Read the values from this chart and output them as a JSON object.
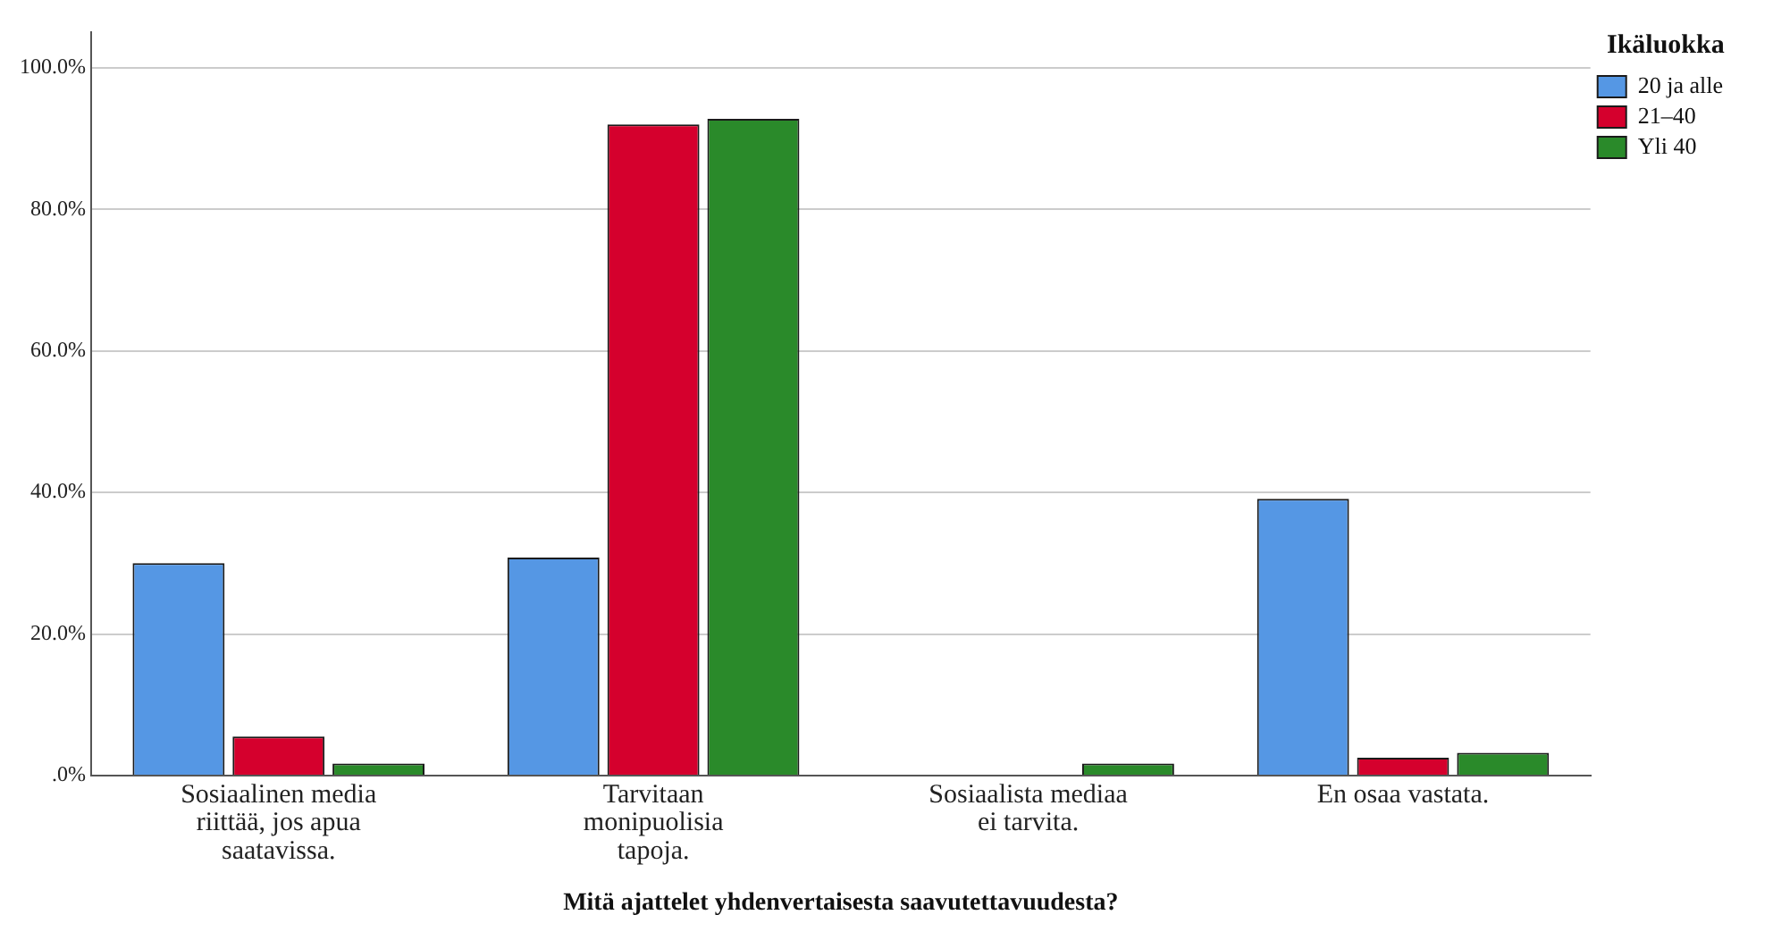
{
  "chart_data": {
    "type": "bar",
    "xlabel": "Mitä ajattelet yhdenvertaisesta saavutettavuudesta?",
    "legend_title": "Ikäluokka",
    "categories": [
      "Sosiaalinen media riittää, jos apua saatavissa.",
      "Tarvitaan monipuolisia tapoja.",
      "Sosiaalista mediaa ei tarvita.",
      "En osaa vastata."
    ],
    "series": [
      {
        "name": "20 ja alle",
        "color": "#5597e4",
        "values": [
          30.0,
          30.8,
          0,
          39.1
        ]
      },
      {
        "name": "21–40",
        "color": "#d5002d",
        "values": [
          5.5,
          92.0,
          0,
          2.5
        ]
      },
      {
        "name": "Yli 40",
        "color": "#2a8a2a",
        "values": [
          1.7,
          92.8,
          1.7,
          3.2
        ]
      }
    ],
    "ylim": [
      0,
      105
    ],
    "yticks": [
      {
        "value": 0,
        "label": ".0%"
      },
      {
        "value": 20,
        "label": "20.0%"
      },
      {
        "value": 40,
        "label": "40.0%"
      },
      {
        "value": 60,
        "label": "60.0%"
      },
      {
        "value": 80,
        "label": "80.0%"
      },
      {
        "value": 100,
        "label": "100.0%"
      }
    ],
    "grid": "y",
    "legend": "top right"
  }
}
